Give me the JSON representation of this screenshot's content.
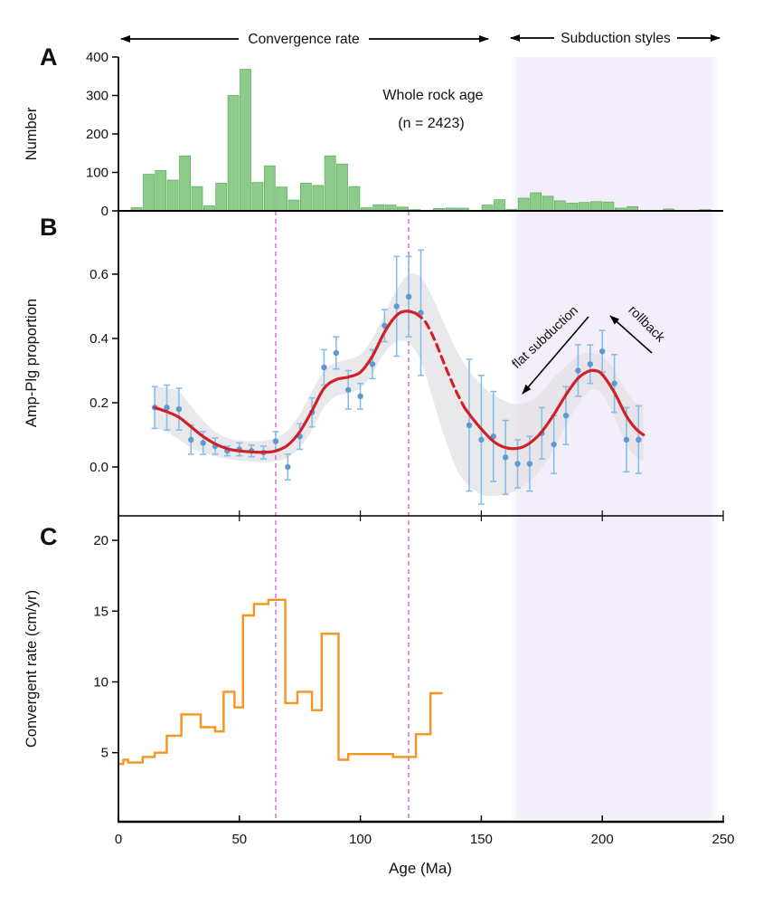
{
  "annotations": {
    "panel_a_label": "A",
    "panel_b_label": "B",
    "panel_c_label": "C",
    "convergence_span": {
      "label": "Convergence rate",
      "age_from": 1,
      "age_to": 153
    },
    "subduction_span": {
      "label": "Subduction styles",
      "age_from": 162,
      "age_to": 248
    }
  },
  "panels": {
    "a": {
      "y_label": "Number",
      "annotation_line1": "Whole rock age",
      "annotation_line2": "(n = 2423)"
    },
    "b": {
      "y_label": "Amp-Plg proportion",
      "flat_subduction_label": "flat subduction",
      "rollback_label": "rollback"
    },
    "c": {
      "y_label": "Convergent rate (cm/yr)"
    }
  },
  "axes": {
    "x": {
      "label": "Age (Ma)",
      "min": 0,
      "max": 250,
      "tick_values": [
        0,
        50,
        100,
        150,
        200,
        250
      ],
      "tick_labels": [
        "0",
        "50",
        "100",
        "150",
        "200",
        "250"
      ]
    },
    "a_y": {
      "min": 0,
      "max": 400,
      "tick_values": [
        0,
        100,
        200,
        300,
        400
      ],
      "tick_labels": [
        "0",
        "100",
        "200",
        "300",
        "400"
      ]
    },
    "b_y": {
      "min": -0.152,
      "max": 0.797,
      "tick_values": [
        0,
        0.2,
        0.4,
        0.6
      ],
      "tick_labels": [
        "0.0",
        "0.2",
        "0.4",
        "0.6"
      ]
    },
    "c_y": {
      "min": 0.12,
      "max": 21.73,
      "tick_values": [
        5,
        10,
        15,
        20
      ],
      "tick_labels": [
        "5",
        "10",
        "15",
        "20"
      ]
    }
  },
  "guides": {
    "dashed_age_lines": [
      65,
      120
    ],
    "shaded_age_region": [
      162,
      248
    ]
  },
  "colors": {
    "green_fill": "#8ccb8a",
    "green_edge": "#63b263",
    "blue_point": "#5e9ad2",
    "blue_err": "#88bde8",
    "red_curve": "#cf2127",
    "gray_band": "#e4e2e5",
    "orange_line": "#f7941e",
    "magenta_dash": "#d36cd3",
    "lavender": "#f3eef9",
    "axis": "#000000"
  },
  "chart_data": [
    {
      "panel": "A",
      "type": "bar",
      "series_name": "Whole rock age histogram",
      "title": "Whole rock age",
      "n_label": "(n = 2423)",
      "xlabel": "Age (Ma)",
      "ylabel": "Number",
      "ylim": [
        0,
        400
      ],
      "bin_width_ma": 5,
      "bin_start_ages": [
        0,
        5,
        10,
        15,
        20,
        25,
        30,
        35,
        40,
        45,
        50,
        55,
        60,
        65,
        70,
        75,
        80,
        85,
        90,
        95,
        100,
        105,
        110,
        115,
        120,
        125,
        130,
        135,
        140,
        145,
        150,
        155,
        160,
        165,
        170,
        175,
        180,
        185,
        190,
        195,
        200,
        205,
        210,
        215,
        220,
        225,
        230,
        235,
        240,
        245
      ],
      "counts": [
        0,
        8,
        95,
        105,
        80,
        143,
        63,
        13,
        72,
        300,
        368,
        74,
        117,
        62,
        28,
        72,
        66,
        143,
        122,
        63,
        8,
        16,
        15,
        10,
        3,
        1,
        6,
        7,
        7,
        1,
        15,
        29,
        4,
        33,
        47,
        38,
        26,
        20,
        22,
        24,
        23,
        7,
        11,
        0,
        0,
        5,
        0,
        0,
        3,
        0
      ]
    },
    {
      "panel": "B",
      "type": "scatter",
      "series_name": "Amp-Plg proportion vs age",
      "xlabel": "Age (Ma)",
      "ylabel": "Amp-Plg proportion",
      "ylim": [
        -0.152,
        0.797
      ],
      "ages": [
        15,
        20,
        25,
        30,
        35,
        40,
        45,
        50,
        55,
        60,
        65,
        70,
        75,
        80,
        85,
        90,
        95,
        100,
        105,
        110,
        115,
        120,
        125,
        145,
        150,
        155,
        160,
        165,
        170,
        175,
        180,
        185,
        190,
        195,
        200,
        205,
        210,
        215
      ],
      "values": [
        0.185,
        0.185,
        0.18,
        0.085,
        0.075,
        0.065,
        0.05,
        0.055,
        0.05,
        0.045,
        0.08,
        0.0,
        0.095,
        0.17,
        0.31,
        0.355,
        0.24,
        0.22,
        0.32,
        0.44,
        0.5,
        0.53,
        0.48,
        0.13,
        0.085,
        0.095,
        0.03,
        0.01,
        0.01,
        0.105,
        0.07,
        0.16,
        0.3,
        0.32,
        0.36,
        0.26,
        0.085,
        0.085
      ],
      "errors": [
        0.065,
        0.07,
        0.065,
        0.045,
        0.035,
        0.025,
        0.015,
        0.02,
        0.018,
        0.02,
        0.03,
        0.04,
        0.04,
        0.045,
        0.055,
        0.05,
        0.06,
        0.04,
        0.045,
        0.05,
        0.155,
        0.125,
        0.195,
        0.205,
        0.2,
        0.14,
        0.115,
        0.075,
        0.085,
        0.08,
        0.09,
        0.09,
        0.08,
        0.06,
        0.065,
        0.09,
        0.1,
        0.105
      ],
      "fit_solid_1": [
        [
          15,
          0.185
        ],
        [
          20,
          0.172
        ],
        [
          25,
          0.155
        ],
        [
          30,
          0.125
        ],
        [
          35,
          0.095
        ],
        [
          40,
          0.072
        ],
        [
          45,
          0.057
        ],
        [
          50,
          0.05
        ],
        [
          55,
          0.047
        ],
        [
          60,
          0.046
        ],
        [
          65,
          0.05
        ],
        [
          70,
          0.068
        ],
        [
          75,
          0.11
        ],
        [
          80,
          0.175
        ],
        [
          85,
          0.245
        ],
        [
          90,
          0.272
        ],
        [
          95,
          0.28
        ],
        [
          100,
          0.295
        ],
        [
          105,
          0.345
        ],
        [
          110,
          0.42
        ],
        [
          115,
          0.472
        ],
        [
          119,
          0.485
        ],
        [
          123,
          0.478
        ]
      ],
      "fit_dashed": [
        [
          123,
          0.478
        ],
        [
          127,
          0.45
        ],
        [
          131,
          0.39
        ],
        [
          135,
          0.315
        ],
        [
          139,
          0.245
        ],
        [
          143,
          0.185
        ]
      ],
      "fit_solid_2": [
        [
          143,
          0.185
        ],
        [
          147,
          0.145
        ],
        [
          151,
          0.11
        ],
        [
          155,
          0.08
        ],
        [
          159,
          0.063
        ],
        [
          163,
          0.057
        ],
        [
          167,
          0.062
        ],
        [
          171,
          0.08
        ],
        [
          175,
          0.11
        ],
        [
          180,
          0.163
        ],
        [
          185,
          0.225
        ],
        [
          190,
          0.276
        ],
        [
          194,
          0.297
        ],
        [
          197,
          0.3
        ],
        [
          200,
          0.288
        ],
        [
          205,
          0.232
        ],
        [
          210,
          0.158
        ],
        [
          214,
          0.118
        ],
        [
          217,
          0.1
        ]
      ],
      "band_upper": [
        [
          15,
          0.25
        ],
        [
          20,
          0.245
        ],
        [
          25,
          0.235
        ],
        [
          30,
          0.19
        ],
        [
          35,
          0.145
        ],
        [
          40,
          0.11
        ],
        [
          45,
          0.09
        ],
        [
          50,
          0.083
        ],
        [
          55,
          0.08
        ],
        [
          60,
          0.082
        ],
        [
          65,
          0.09
        ],
        [
          70,
          0.115
        ],
        [
          75,
          0.165
        ],
        [
          80,
          0.235
        ],
        [
          85,
          0.3
        ],
        [
          90,
          0.325
        ],
        [
          95,
          0.335
        ],
        [
          100,
          0.35
        ],
        [
          105,
          0.4
        ],
        [
          110,
          0.475
        ],
        [
          115,
          0.55
        ],
        [
          120,
          0.6
        ],
        [
          125,
          0.59
        ],
        [
          130,
          0.525
        ],
        [
          135,
          0.44
        ],
        [
          140,
          0.36
        ],
        [
          145,
          0.3
        ],
        [
          150,
          0.255
        ],
        [
          155,
          0.225
        ],
        [
          160,
          0.205
        ],
        [
          165,
          0.195
        ],
        [
          170,
          0.205
        ],
        [
          175,
          0.235
        ],
        [
          180,
          0.28
        ],
        [
          185,
          0.315
        ],
        [
          190,
          0.345
        ],
        [
          195,
          0.355
        ],
        [
          200,
          0.345
        ],
        [
          205,
          0.3
        ],
        [
          210,
          0.235
        ],
        [
          214,
          0.2
        ],
        [
          217,
          0.195
        ]
      ],
      "band_lower": [
        [
          15,
          0.122
        ],
        [
          20,
          0.11
        ],
        [
          25,
          0.085
        ],
        [
          30,
          0.06
        ],
        [
          35,
          0.045
        ],
        [
          40,
          0.033
        ],
        [
          45,
          0.025
        ],
        [
          50,
          0.02
        ],
        [
          55,
          0.017
        ],
        [
          60,
          0.015
        ],
        [
          65,
          0.018
        ],
        [
          70,
          0.03
        ],
        [
          75,
          0.06
        ],
        [
          80,
          0.115
        ],
        [
          85,
          0.185
        ],
        [
          90,
          0.22
        ],
        [
          95,
          0.23
        ],
        [
          100,
          0.245
        ],
        [
          105,
          0.29
        ],
        [
          110,
          0.355
        ],
        [
          115,
          0.39
        ],
        [
          120,
          0.385
        ],
        [
          125,
          0.33
        ],
        [
          130,
          0.21
        ],
        [
          135,
          0.09
        ],
        [
          140,
          -0.01
        ],
        [
          145,
          -0.06
        ],
        [
          150,
          -0.085
        ],
        [
          155,
          -0.09
        ],
        [
          160,
          -0.085
        ],
        [
          165,
          -0.07
        ],
        [
          170,
          -0.045
        ],
        [
          175,
          -0.005
        ],
        [
          180,
          0.055
        ],
        [
          185,
          0.13
        ],
        [
          190,
          0.195
        ],
        [
          195,
          0.24
        ],
        [
          200,
          0.225
        ],
        [
          205,
          0.155
        ],
        [
          210,
          0.07
        ],
        [
          214,
          0.03
        ],
        [
          217,
          0.02
        ]
      ]
    },
    {
      "panel": "C",
      "type": "step",
      "series_name": "Convergent rate",
      "xlabel": "Age (Ma)",
      "ylabel": "Convergent rate (cm/yr)",
      "ylim": [
        0,
        22
      ],
      "step_ages": [
        0,
        2,
        4,
        10,
        15,
        20,
        26,
        34,
        40,
        43.5,
        48,
        51.5,
        56,
        62,
        69,
        74,
        80,
        84,
        91,
        95,
        113.5,
        123,
        129
      ],
      "step_values": [
        4.2,
        4.5,
        4.3,
        4.7,
        5.0,
        6.2,
        7.7,
        6.8,
        6.5,
        9.3,
        8.2,
        14.7,
        15.5,
        15.8,
        8.5,
        9.3,
        8.0,
        13.4,
        4.5,
        4.9,
        4.7,
        6.3,
        9.2
      ],
      "end_age": 134
    }
  ]
}
